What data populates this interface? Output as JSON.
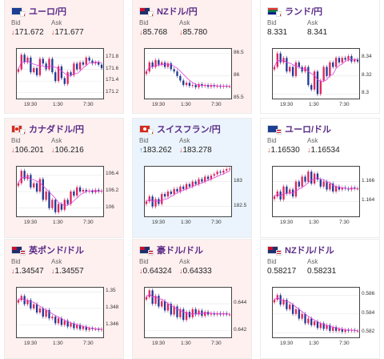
{
  "labels": {
    "bid": "Bid",
    "ask": "Ask"
  },
  "colors": {
    "down_bg": "#fff0f0",
    "up_bg": "#ebf4fc",
    "up_candle": "#e0245e",
    "down_candle": "#1f3a93",
    "ma_line": "#e040e0",
    "title": "#5a2b86"
  },
  "time_ticks": [
    "19:30",
    "1:30",
    "7:30"
  ],
  "top_strip": [
    "down",
    "flat",
    "flat"
  ],
  "cards": [
    {
      "title": "ユーロ/円",
      "flags": [
        "eu-flag-icon",
        "jp-flag-icon"
      ],
      "trend": "down",
      "bid": "171.672",
      "ask": "171.677",
      "bid_dir": "down",
      "ask_dir": "down",
      "chart_data": {
        "type": "candlestick",
        "y_ticks": [
          "171.8",
          "171.6",
          "171.4",
          "171.2"
        ],
        "ylim": [
          171.1,
          171.95
        ],
        "close": [
          171.6,
          171.85,
          171.72,
          171.8,
          171.55,
          171.62,
          171.5,
          171.78,
          171.7,
          171.6,
          171.78,
          171.55,
          171.4,
          171.65,
          171.45,
          171.35,
          171.55,
          171.5,
          171.7,
          171.6,
          171.72,
          171.68,
          171.8,
          171.75,
          171.7,
          171.72,
          171.68,
          171.62
        ]
      }
    },
    {
      "title": "NZドル/円",
      "flags": [
        "nz-flag-icon",
        "jp-flag-icon"
      ],
      "trend": "down",
      "bid": "85.768",
      "ask": "85.780",
      "bid_dir": "down",
      "ask_dir": "down",
      "chart_data": {
        "type": "candlestick",
        "y_ticks": [
          "86.5",
          "86",
          "85.5"
        ],
        "ylim": [
          85.5,
          86.6
        ],
        "close": [
          86.1,
          86.3,
          86.2,
          86.35,
          86.25,
          86.3,
          86.2,
          86.28,
          86.15,
          86.1,
          86.0,
          85.9,
          85.8,
          85.85,
          85.78,
          85.8,
          85.75,
          85.82,
          85.78,
          85.8,
          85.76,
          85.8,
          85.77,
          85.78,
          85.76,
          85.78,
          85.77,
          85.77
        ]
      }
    },
    {
      "title": "ランド/円",
      "flags": [
        "za-flag-icon",
        "jp-flag-icon"
      ],
      "trend": "flat",
      "bid": "8.331",
      "ask": "8.341",
      "bid_dir": "none",
      "ask_dir": "none",
      "chart_data": {
        "type": "candlestick",
        "y_ticks": [
          "8.34",
          "8.32",
          "8.3"
        ],
        "ylim": [
          8.295,
          8.35
        ],
        "close": [
          8.33,
          8.345,
          8.335,
          8.34,
          8.325,
          8.33,
          8.32,
          8.335,
          8.33,
          8.325,
          8.33,
          8.31,
          8.305,
          8.325,
          8.3,
          8.315,
          8.33,
          8.32,
          8.335,
          8.33,
          8.34,
          8.335,
          8.34,
          8.338,
          8.342,
          8.336,
          8.338,
          8.336
        ]
      }
    },
    {
      "title": "カナダドル/円",
      "flags": [
        "ca-flag-icon",
        "jp-flag-icon"
      ],
      "trend": "down",
      "bid": "106.201",
      "ask": "106.216",
      "bid_dir": "down",
      "ask_dir": "down",
      "chart_data": {
        "type": "candlestick",
        "y_ticks": [
          "106.4",
          "106.2",
          "106"
        ],
        "ylim": [
          105.9,
          106.5
        ],
        "close": [
          106.3,
          106.45,
          106.35,
          106.4,
          106.25,
          106.3,
          106.2,
          106.35,
          106.1,
          106.2,
          106.0,
          106.1,
          105.95,
          106.05,
          105.98,
          106.1,
          106.05,
          106.2,
          106.15,
          106.25,
          106.2,
          106.22,
          106.2,
          106.21,
          106.19,
          106.22,
          106.2,
          106.21
        ]
      }
    },
    {
      "title": "スイスフラン/円",
      "flags": [
        "ch-flag-icon",
        "jp-flag-icon"
      ],
      "trend": "up",
      "bid": "183.262",
      "ask": "183.278",
      "bid_dir": "up",
      "ask_dir": "down",
      "chart_data": {
        "type": "candlestick",
        "y_ticks": [
          "183",
          "182.5"
        ],
        "ylim": [
          182.3,
          183.3
        ],
        "close": [
          182.6,
          182.7,
          182.5,
          182.65,
          182.55,
          182.75,
          182.7,
          182.8,
          182.75,
          182.85,
          182.8,
          182.9,
          182.85,
          182.95,
          182.9,
          183.0,
          182.95,
          183.05,
          183.0,
          183.1,
          183.05,
          183.12,
          183.15,
          183.2,
          183.18,
          183.22,
          183.25,
          183.26
        ]
      }
    },
    {
      "title": "ユーロ/ドル",
      "flags": [
        "eu-flag-icon",
        "us-flag-icon"
      ],
      "trend": "flat",
      "bid": "1.16530",
      "ask": "1.16534",
      "bid_dir": "down",
      "ask_dir": "down",
      "chart_data": {
        "type": "candlestick",
        "y_ticks": [
          "1.166",
          "1.164"
        ],
        "ylim": [
          1.1625,
          1.1675
        ],
        "close": [
          1.1645,
          1.165,
          1.1642,
          1.1655,
          1.1648,
          1.1652,
          1.1645,
          1.166,
          1.1655,
          1.1665,
          1.166,
          1.167,
          1.1658,
          1.1668,
          1.1662,
          1.1655,
          1.166,
          1.1652,
          1.1658,
          1.165,
          1.1655,
          1.1652,
          1.1654,
          1.1653,
          1.1652,
          1.1654,
          1.1653,
          1.1653
        ]
      }
    },
    {
      "title": "英ポンド/ドル",
      "flags": [
        "gb-flag-icon",
        "us-flag-icon"
      ],
      "trend": "down",
      "bid": "1.34547",
      "ask": "1.34557",
      "bid_dir": "down",
      "ask_dir": "down",
      "chart_data": {
        "type": "candlestick",
        "y_ticks": [
          "1.35",
          "1.348",
          "1.346"
        ],
        "ylim": [
          1.3445,
          1.3505
        ],
        "close": [
          1.349,
          1.3495,
          1.3485,
          1.349,
          1.348,
          1.3485,
          1.3475,
          1.348,
          1.347,
          1.3478,
          1.3468,
          1.347,
          1.3462,
          1.3468,
          1.346,
          1.3465,
          1.3458,
          1.3462,
          1.3456,
          1.346,
          1.3455,
          1.3458,
          1.3454,
          1.3456,
          1.3455,
          1.3455,
          1.3454,
          1.3455
        ]
      }
    },
    {
      "title": "豪ドル/ドル",
      "flags": [
        "au-flag-icon",
        "us-flag-icon"
      ],
      "trend": "down",
      "bid": "0.64324",
      "ask": "0.64333",
      "bid_dir": "down",
      "ask_dir": "down",
      "chart_data": {
        "type": "candlestick",
        "y_ticks": [
          "0.644",
          "0.642"
        ],
        "ylim": [
          0.6415,
          0.6452
        ],
        "close": [
          0.6445,
          0.645,
          0.644,
          0.6446,
          0.6438,
          0.6442,
          0.6435,
          0.644,
          0.6432,
          0.6438,
          0.643,
          0.6436,
          0.6428,
          0.6434,
          0.643,
          0.6436,
          0.6432,
          0.6435,
          0.6431,
          0.6434,
          0.6432,
          0.6433,
          0.6432,
          0.6433,
          0.6432,
          0.6433,
          0.6432,
          0.6432
        ]
      }
    },
    {
      "title": "NZドル/ドル",
      "flags": [
        "nz-flag-icon",
        "us-flag-icon"
      ],
      "trend": "flat",
      "bid": "0.58217",
      "ask": "0.58231",
      "bid_dir": "none",
      "ask_dir": "none",
      "chart_data": {
        "type": "candlestick",
        "y_ticks": [
          "0.586",
          "0.584",
          "0.582"
        ],
        "ylim": [
          0.5815,
          0.5868
        ],
        "close": [
          0.5855,
          0.586,
          0.585,
          0.5855,
          0.5845,
          0.585,
          0.584,
          0.5845,
          0.5835,
          0.584,
          0.583,
          0.5835,
          0.5828,
          0.5832,
          0.5825,
          0.583,
          0.5824,
          0.5828,
          0.5822,
          0.5826,
          0.5822,
          0.5824,
          0.5821,
          0.5823,
          0.5822,
          0.5823,
          0.5822,
          0.5822
        ]
      }
    }
  ]
}
